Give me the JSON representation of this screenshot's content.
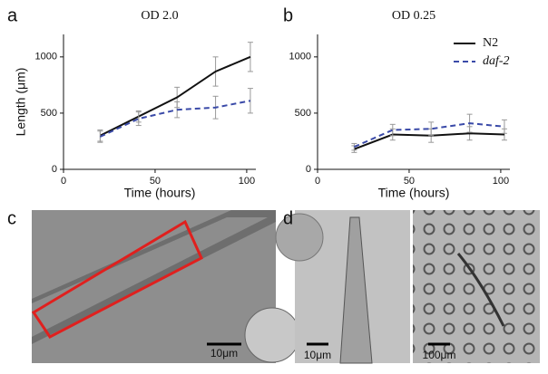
{
  "chart_data": [
    {
      "type": "line",
      "panel_label": "a",
      "title": "OD 2.0",
      "x_label": "Time (hours)",
      "y_label": "Length (μm)",
      "x": [
        20,
        41,
        62,
        83,
        102
      ],
      "series": [
        {
          "name": "N2",
          "color": "#111111",
          "dash": "solid",
          "values": [
            300,
            470,
            640,
            870,
            1000
          ],
          "errors": [
            50,
            50,
            90,
            130,
            130
          ]
        },
        {
          "name": "daf-2",
          "color": "#3a4aa8",
          "dash": "dashed",
          "values": [
            290,
            450,
            530,
            550,
            610
          ],
          "errors": [
            50,
            60,
            70,
            100,
            110
          ]
        }
      ],
      "xlim": [
        0,
        105
      ],
      "ylim": [
        0,
        1200
      ],
      "xticks": [
        0,
        50,
        100
      ],
      "yticks": [
        0,
        500,
        1000
      ],
      "legend": null
    },
    {
      "type": "line",
      "panel_label": "b",
      "title": "OD 0.25",
      "x_label": "Time (hours)",
      "y_label": null,
      "x": [
        20,
        41,
        62,
        83,
        102
      ],
      "series": [
        {
          "name": "N2",
          "color": "#111111",
          "dash": "solid",
          "values": [
            180,
            310,
            300,
            320,
            310
          ],
          "errors": [
            30,
            50,
            60,
            60,
            50
          ]
        },
        {
          "name": "daf-2",
          "color": "#3a4aa8",
          "dash": "dashed",
          "values": [
            200,
            350,
            360,
            410,
            380
          ],
          "errors": [
            30,
            50,
            60,
            80,
            60
          ]
        }
      ],
      "xlim": [
        0,
        105
      ],
      "ylim": [
        0,
        1200
      ],
      "xticks": [
        0,
        50,
        100
      ],
      "yticks": [
        0,
        500,
        1000
      ],
      "legend": "upper right"
    }
  ],
  "images": [
    {
      "panel_label": "c",
      "scale_bars": [
        "10μm"
      ]
    },
    {
      "panel_label": "d",
      "scale_bars": [
        "10μm",
        "100μm"
      ]
    }
  ]
}
